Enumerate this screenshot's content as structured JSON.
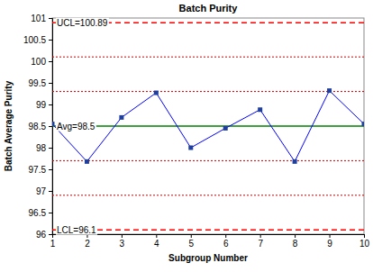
{
  "chart_data": {
    "type": "line",
    "title": "Batch Purity",
    "x_label": "Subgroup Number",
    "y_label": "Batch Average Purity",
    "x": [
      1,
      2,
      3,
      4,
      5,
      6,
      7,
      8,
      9,
      10
    ],
    "series": [
      {
        "color": "#0000ff",
        "marker": "square",
        "line_style": "solid",
        "values": [
          98.55,
          97.68,
          98.7,
          99.27,
          98.0,
          98.45,
          98.88,
          97.68,
          99.32,
          98.55
        ]
      }
    ],
    "reference_lines": [
      {
        "value": 100.89,
        "label": "UCL=100.89",
        "color": "#ff0000",
        "line_style": "dashed"
      },
      {
        "value": 98.5,
        "label": "Avg=98.5",
        "color": "#008000",
        "line_style": "solid"
      },
      {
        "value": 96.1,
        "label": "LCL=96.1",
        "color": "#ff0000",
        "line_style": "dashed"
      },
      {
        "value": 100.1,
        "color": "#c00000",
        "line_style": "dotted"
      },
      {
        "value": 99.3,
        "color": "#c00000",
        "line_style": "dotted"
      },
      {
        "value": 97.7,
        "color": "#c00000",
        "line_style": "dotted"
      },
      {
        "value": 96.9,
        "color": "#c00000",
        "line_style": "dotted"
      }
    ],
    "xlim": [
      1,
      10
    ],
    "xticks": [
      1,
      2,
      3,
      4,
      5,
      6,
      7,
      8,
      9,
      10
    ],
    "ylim": [
      96,
      101
    ],
    "yticks": [
      96,
      96.5,
      97,
      97.5,
      98,
      98.5,
      99,
      99.5,
      100,
      100.5,
      101
    ],
    "grid": false
  }
}
